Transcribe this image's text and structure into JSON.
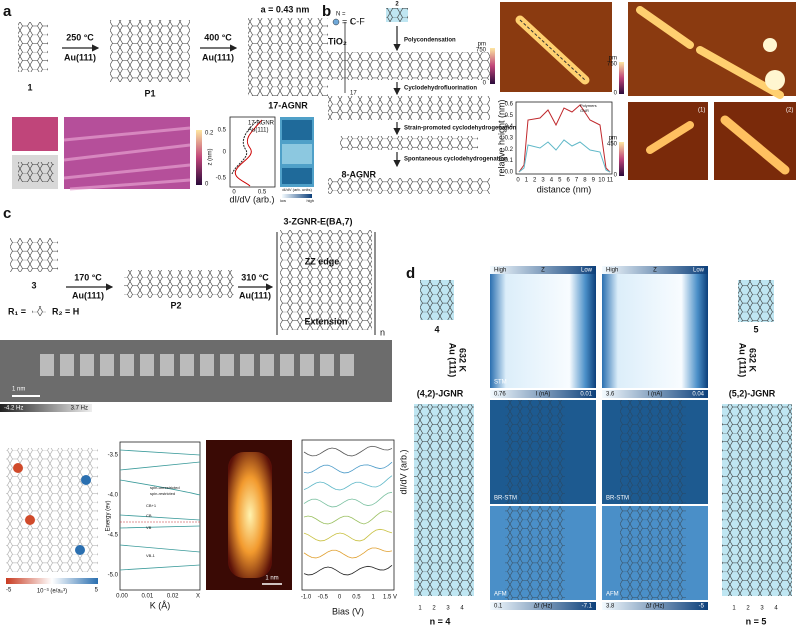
{
  "panels": {
    "a": {
      "label": "a",
      "precursor": "1",
      "step1_temp": "250 °C",
      "step1_substrate": "Au(111)",
      "intermediate": "P1",
      "step2_temp": "400 °C",
      "step2_substrate": "Au(111)",
      "lattice": "a = 0.43 nm",
      "width_label": "N =",
      "width_first": "1",
      "width_last": "17",
      "product": "17-AGNR",
      "colorbar_label": "z (nm)",
      "colorbar_max": "0.2",
      "colorbar_min": "0",
      "legend": [
        "17-AGNR",
        "Au(111)"
      ],
      "x_axis": "dI/dV (arb.)",
      "x_ticks": [
        "0",
        "0.5"
      ],
      "y_ticks": [
        "0.5",
        "0",
        "-0.5"
      ],
      "map_colorbar": "dI/dV (arb. units)",
      "map_low": "low",
      "map_high": "high"
    },
    "b": {
      "label": "b",
      "legend_symbol": "= C-F",
      "precursor": "2",
      "substrate": "TiO₂",
      "steps": [
        "Polycondensation",
        "Cyclodehydrofluorination",
        "Strain-promoted cyclodehydrogenation",
        "Spontaneous cyclodehydrogenation"
      ],
      "product": "8-AGNR",
      "unit": "pm",
      "cbar1_max": "750",
      "cbar1_min": "0",
      "cbar2_max": "750",
      "cbar2_min": "0",
      "cbar3_max": "450",
      "cbar3_min": "0",
      "y_axis": "relative height (nm)",
      "x_axis": "distance (nm)",
      "x_ticks": [
        "0",
        "1",
        "2",
        "3",
        "4",
        "5",
        "6",
        "7",
        "8",
        "9",
        "10",
        "11"
      ],
      "y_ticks": [
        "0.6",
        "0.5",
        "0.4",
        "0.3",
        "0.2",
        "0.1",
        "0.0"
      ],
      "legend": [
        "Polymers",
        "GNR"
      ],
      "image_labels": [
        "(1)",
        "(2)"
      ]
    },
    "c": {
      "label": "c",
      "precursor": "3",
      "step1_temp": "170 °C",
      "step1_substrate": "Au(111)",
      "intermediate": "P2",
      "step2_temp": "310 °C",
      "step2_substrate": "Au(111)",
      "product": "3-ZGNR-E(BA,7)",
      "edge": "ZZ edge",
      "extension": "Extension",
      "repeat": "n",
      "r1": "R₁ =",
      "r2": "R₂ = H",
      "scale": "1 nm",
      "afm_min": "-4.2 Hz",
      "afm_max": "3.7 Hz",
      "spin_min": "-5",
      "spin_unit": "10⁻³ (e/a₀³)",
      "spin_max": "5",
      "band_y_axis": "Energy (ev)",
      "band_x_axis": "K (Å)",
      "band_y_ticks": [
        "-3.5",
        "-4.0",
        "-4.5",
        "-5.0"
      ],
      "band_x_ticks": [
        "0.00",
        "0.01",
        "0.02",
        "X"
      ],
      "band_legend": [
        "spin-unrestricted",
        "spin-restricted"
      ],
      "bands": [
        "CB+1",
        "CB",
        "VB",
        "VB-1"
      ],
      "stm_scale": "1 nm",
      "bias_axis": "Bias (V)",
      "bias_ticks": [
        "-1.0",
        "-0.5",
        "0",
        "0.5",
        "1",
        "1.5 V"
      ]
    },
    "d": {
      "label": "d",
      "left_precursor": "4",
      "right_precursor": "5",
      "condition": "632 K",
      "substrate": "Au (111)",
      "left_product": "(4,2)-JGNR",
      "right_product": "(5,2)-JGNR",
      "z_high": "High",
      "z_label": "Z",
      "z_low": "Low",
      "stm": "STM",
      "br_stm": "BR-STM",
      "afm": "AFM",
      "current_label": "I (nA)",
      "df_label": "Δf (Hz)",
      "left_current": [
        "0.76",
        "0.01"
      ],
      "right_current": [
        "3.6",
        "0.04"
      ],
      "left_df": [
        "0.1",
        "-7.1"
      ],
      "right_df": [
        "3.8",
        "-5"
      ],
      "y_axis": "dI/dV (arb.)",
      "columns": [
        "1",
        "2",
        "3",
        "4"
      ],
      "left_n": "n = 4",
      "right_n": "n = 5"
    }
  }
}
